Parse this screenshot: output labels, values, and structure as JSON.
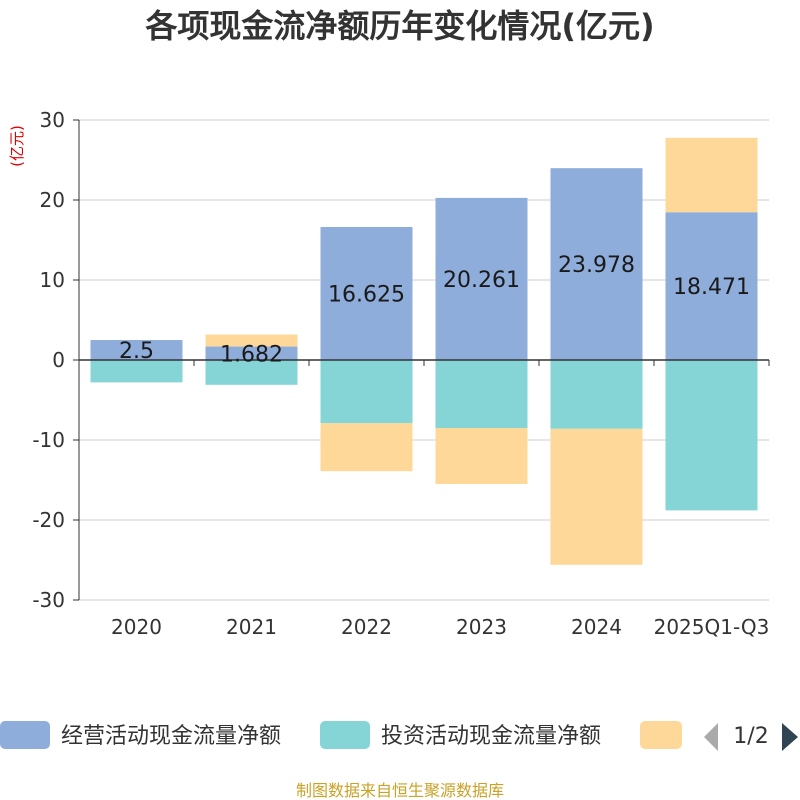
{
  "chart_data": {
    "type": "bar",
    "stacked": true,
    "title": "各项现金流净额历年变化情况(亿元)",
    "ylabel": "(亿元)",
    "ylim": [
      -30,
      30
    ],
    "yticks": [
      30,
      20,
      10,
      0,
      -10,
      -20,
      -30
    ],
    "categories": [
      "2020",
      "2021",
      "2022",
      "2023",
      "2024",
      "2025Q1-Q3"
    ],
    "series": [
      {
        "name": "经营活动现金流量净额",
        "color": "#8eadda",
        "values": [
          2.5,
          1.682,
          16.625,
          20.261,
          23.978,
          18.471
        ],
        "labels": [
          "2.5",
          "1.682",
          "16.625",
          "20.261",
          "23.978",
          "18.471"
        ]
      },
      {
        "name": "投资活动现金流量净额",
        "color": "#85d5d7",
        "values": [
          -2.8,
          -3.1,
          -7.9,
          -8.5,
          -8.6,
          -18.8
        ]
      },
      {
        "name": "",
        "color": "#fdd898",
        "values": [
          0.0,
          1.5,
          -6.0,
          -7.0,
          -17.0,
          9.3
        ]
      }
    ],
    "legend": {
      "position": "bottom",
      "page": "1/2"
    }
  },
  "footer": {
    "source": "制图数据来自恒生聚源数据库"
  }
}
